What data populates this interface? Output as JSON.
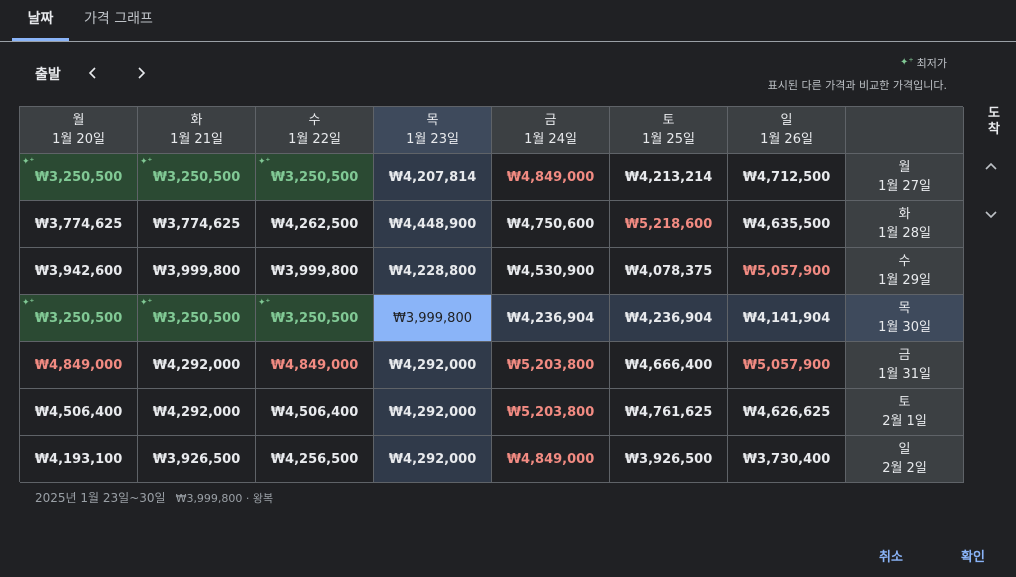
{
  "tabs": [
    {
      "label": "날짜",
      "active": true
    },
    {
      "label": "가격 그래프",
      "active": false
    }
  ],
  "departure_label": "출발",
  "arrival_label": "도착",
  "legend": {
    "title": "최저가",
    "subtitle": "표시된 다른 가격과 비교한 가격입니다."
  },
  "columns": [
    {
      "day": "월",
      "date": "1월 20일"
    },
    {
      "day": "화",
      "date": "1월 21일"
    },
    {
      "day": "수",
      "date": "1월 22일"
    },
    {
      "day": "목",
      "date": "1월 23일"
    },
    {
      "day": "금",
      "date": "1월 24일"
    },
    {
      "day": "토",
      "date": "1월 25일"
    },
    {
      "day": "일",
      "date": "1월 26일"
    }
  ],
  "rows": [
    {
      "day": "월",
      "date": "1월 27일",
      "prices": [
        "₩3,250,500",
        "₩3,250,500",
        "₩3,250,500",
        "₩4,207,814",
        "₩4,849,000",
        "₩4,213,214",
        "₩4,712,500"
      ]
    },
    {
      "day": "화",
      "date": "1월 28일",
      "prices": [
        "₩3,774,625",
        "₩3,774,625",
        "₩4,262,500",
        "₩4,448,900",
        "₩4,750,600",
        "₩5,218,600",
        "₩4,635,500"
      ]
    },
    {
      "day": "수",
      "date": "1월 29일",
      "prices": [
        "₩3,942,600",
        "₩3,999,800",
        "₩3,999,800",
        "₩4,228,800",
        "₩4,530,900",
        "₩4,078,375",
        "₩5,057,900"
      ]
    },
    {
      "day": "목",
      "date": "1월 30일",
      "prices": [
        "₩3,250,500",
        "₩3,250,500",
        "₩3,250,500",
        "₩3,999,800",
        "₩4,236,904",
        "₩4,236,904",
        "₩4,141,904"
      ]
    },
    {
      "day": "금",
      "date": "1월 31일",
      "prices": [
        "₩4,849,000",
        "₩4,292,000",
        "₩4,849,000",
        "₩4,292,000",
        "₩5,203,800",
        "₩4,666,400",
        "₩5,057,900"
      ]
    },
    {
      "day": "토",
      "date": "2월 1일",
      "prices": [
        "₩4,506,400",
        "₩4,292,000",
        "₩4,506,400",
        "₩4,292,000",
        "₩5,203,800",
        "₩4,761,625",
        "₩4,626,625"
      ]
    },
    {
      "day": "일",
      "date": "2월 2일",
      "prices": [
        "₩4,193,100",
        "₩3,926,500",
        "₩4,256,500",
        "₩4,292,000",
        "₩4,849,000",
        "₩3,926,500",
        "₩3,730,400"
      ]
    }
  ],
  "cheap_cells": [
    [
      0,
      0
    ],
    [
      0,
      1
    ],
    [
      0,
      2
    ],
    [
      3,
      0
    ],
    [
      3,
      1
    ],
    [
      3,
      2
    ]
  ],
  "high_cells": [
    [
      0,
      4
    ],
    [
      1,
      5
    ],
    [
      2,
      6
    ],
    [
      4,
      0
    ],
    [
      4,
      2
    ],
    [
      4,
      4
    ],
    [
      4,
      6
    ],
    [
      5,
      4
    ],
    [
      6,
      4
    ]
  ],
  "selected": {
    "row": 3,
    "col": 3
  },
  "summary": {
    "dates": "2025년 1월 23일~30일",
    "detail": "₩3,999,800 · 왕복"
  },
  "buttons": {
    "cancel": "취소",
    "ok": "확인"
  },
  "colors": {
    "accent": "#8ab4f8",
    "cheap": "#81c995",
    "high": "#f28b82"
  }
}
